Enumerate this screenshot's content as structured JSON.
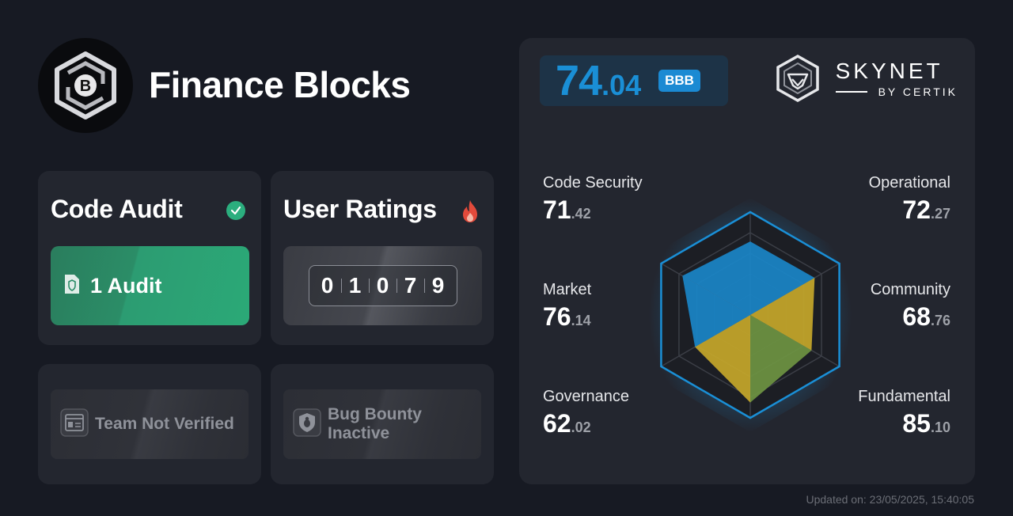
{
  "project": {
    "name": "Finance Blocks",
    "logo_icon": "finance-blocks-logo-icon"
  },
  "code_audit": {
    "title": "Code Audit",
    "status_icon": "check-circle-icon",
    "audit_label": "1 Audit",
    "audit_icon": "shield-document-icon",
    "accent": "#2ba977"
  },
  "user_ratings": {
    "title": "User Ratings",
    "icon": "fire-icon",
    "digits": [
      "0",
      "1",
      "0",
      "7",
      "9"
    ]
  },
  "team": {
    "label": "Team Not Verified",
    "icon": "id-card-icon"
  },
  "bug_bounty": {
    "label": "Bug Bounty Inactive",
    "icon": "shield-bug-icon"
  },
  "score": {
    "integer": "74",
    "decimal": ".04",
    "grade": "BBB",
    "accent": "#1a8fd6"
  },
  "brand": {
    "name": "SKYNET",
    "sub": "BY CERTIK"
  },
  "metrics": {
    "code_security": {
      "label": "Code Security",
      "int": "71",
      "dec": ".42",
      "value": 71.42
    },
    "operational": {
      "label": "Operational",
      "int": "72",
      "dec": ".27",
      "value": 72.27
    },
    "market": {
      "label": "Market",
      "int": "76",
      "dec": ".14",
      "value": 76.14
    },
    "community": {
      "label": "Community",
      "int": "68",
      "dec": ".76",
      "value": 68.76
    },
    "governance": {
      "label": "Governance",
      "int": "62",
      "dec": ".02",
      "value": 62.02
    },
    "fundamental": {
      "label": "Fundamental",
      "int": "85",
      "dec": ".10",
      "value": 85.1
    }
  },
  "radar_colors": {
    "blue": "#1a86c8",
    "yellow": "#c6a72a",
    "green": "#6e9442"
  },
  "updated": "Updated on: 23/05/2025, 15:40:05"
}
